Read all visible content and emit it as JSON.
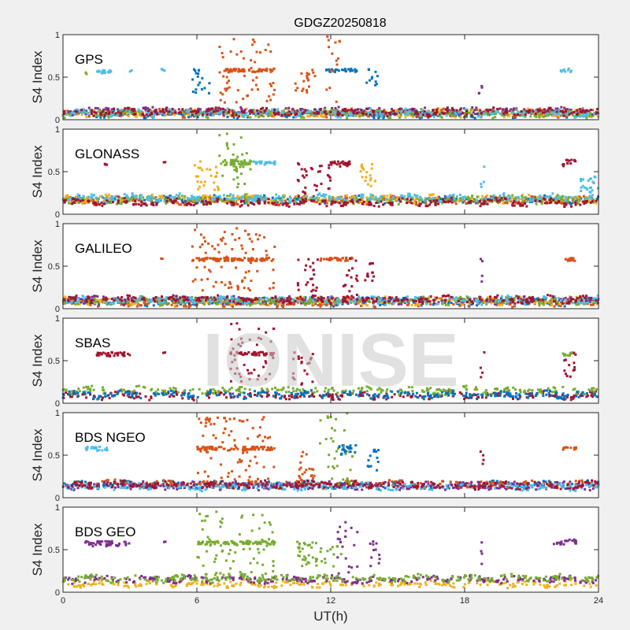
{
  "chart_data": {
    "type": "scatter",
    "title": "GDGZ20250818",
    "xlabel": "UT(h)",
    "xlim": [
      0,
      24
    ],
    "xticks": [
      "0",
      "6",
      "12",
      "18",
      "24"
    ],
    "ylim": [
      0,
      1
    ],
    "yticks": [
      "0",
      "0.5",
      "1"
    ],
    "grid": false,
    "watermark": "IONISE",
    "series_colors": [
      "#0072BD",
      "#D95319",
      "#EDB120",
      "#7E2F8E",
      "#77AC30",
      "#4DBEEE",
      "#A2142F"
    ],
    "panels": [
      {
        "label": "GPS",
        "ylabel": "S4 Index",
        "baseline": [
          {
            "series": 0,
            "s4": 0.07
          },
          {
            "series": 1,
            "s4": 0.08
          },
          {
            "series": 2,
            "s4": 0.08
          },
          {
            "series": 3,
            "s4": 0.1
          },
          {
            "series": 4,
            "s4": 0.07
          },
          {
            "series": 5,
            "s4": 0.08
          },
          {
            "series": 6,
            "s4": 0.09
          }
        ],
        "clusters": [
          {
            "series": 4,
            "t": [
              1.0,
              1.1
            ],
            "s4_range": [
              0.52,
              0.56
            ]
          },
          {
            "series": 5,
            "t": [
              1.5,
              2.2
            ],
            "s4_range": [
              0.54,
              0.58
            ]
          },
          {
            "series": 5,
            "t": [
              3.0,
              3.1
            ],
            "s4_range": [
              0.55,
              0.58
            ]
          },
          {
            "series": 5,
            "t": [
              4.4,
              4.6
            ],
            "s4_range": [
              0.57,
              0.6
            ]
          },
          {
            "series": 0,
            "t": [
              5.8,
              6.6
            ],
            "s4_range": [
              0.3,
              0.6
            ]
          },
          {
            "series": 1,
            "t": [
              7.2,
              9.5
            ],
            "s4_range": [
              0.56,
              0.6
            ]
          },
          {
            "series": 1,
            "t": [
              7.0,
              9.5
            ],
            "s4_range": [
              0.2,
              0.95
            ]
          },
          {
            "series": 1,
            "t": [
              10.4,
              11.3
            ],
            "s4_range": [
              0.3,
              0.6
            ]
          },
          {
            "series": 0,
            "t": [
              11.8,
              13.2
            ],
            "s4_range": [
              0.56,
              0.6
            ]
          },
          {
            "series": 1,
            "t": [
              11.8,
              12.5
            ],
            "s4_range": [
              0.2,
              1.0
            ]
          },
          {
            "series": 0,
            "t": [
              13.6,
              14.1
            ],
            "s4_range": [
              0.4,
              0.6
            ]
          },
          {
            "series": 3,
            "t": [
              18.6,
              18.8
            ],
            "s4_range": [
              0.3,
              0.6
            ]
          },
          {
            "series": 5,
            "t": [
              22.3,
              22.8
            ],
            "s4_range": [
              0.56,
              0.6
            ]
          }
        ]
      },
      {
        "label": "GLONASS",
        "ylabel": "S4 Index",
        "baseline": [
          {
            "series": 0,
            "s4": 0.17
          },
          {
            "series": 1,
            "s4": 0.16
          },
          {
            "series": 2,
            "s4": 0.18
          },
          {
            "series": 4,
            "s4": 0.17
          },
          {
            "series": 5,
            "s4": 0.19
          },
          {
            "series": 6,
            "s4": 0.14
          }
        ],
        "clusters": [
          {
            "series": 6,
            "t": [
              1.8,
              2.0
            ],
            "s4_range": [
              0.58,
              0.62
            ]
          },
          {
            "series": 6,
            "t": [
              4.5,
              4.6
            ],
            "s4_range": [
              0.58,
              0.62
            ]
          },
          {
            "series": 2,
            "t": [
              5.8,
              7.0
            ],
            "s4_range": [
              0.2,
              0.62
            ]
          },
          {
            "series": 4,
            "t": [
              7.0,
              8.5
            ],
            "s4_range": [
              0.58,
              0.64
            ]
          },
          {
            "series": 4,
            "t": [
              7.0,
              8.5
            ],
            "s4_range": [
              0.2,
              0.98
            ]
          },
          {
            "series": 5,
            "t": [
              8.5,
              9.5
            ],
            "s4_range": [
              0.58,
              0.62
            ]
          },
          {
            "series": 6,
            "t": [
              10.5,
              12.0
            ],
            "s4_range": [
              0.2,
              0.64
            ]
          },
          {
            "series": 6,
            "t": [
              12.0,
              13.0
            ],
            "s4_range": [
              0.56,
              0.62
            ]
          },
          {
            "series": 2,
            "t": [
              13.2,
              14.0
            ],
            "s4_range": [
              0.3,
              0.6
            ]
          },
          {
            "series": 5,
            "t": [
              18.7,
              18.9
            ],
            "s4_range": [
              0.3,
              0.62
            ]
          },
          {
            "series": 6,
            "t": [
              22.4,
              23.0
            ],
            "s4_range": [
              0.56,
              0.64
            ]
          },
          {
            "series": 5,
            "t": [
              23.0,
              24.0
            ],
            "s4_range": [
              0.25,
              0.45
            ]
          }
        ]
      },
      {
        "label": "GALILEO",
        "ylabel": "S4 Index",
        "baseline": [
          {
            "series": 0,
            "s4": 0.08
          },
          {
            "series": 1,
            "s4": 0.07
          },
          {
            "series": 2,
            "s4": 0.09
          },
          {
            "series": 3,
            "s4": 0.1
          },
          {
            "series": 4,
            "s4": 0.09
          },
          {
            "series": 5,
            "s4": 0.1
          },
          {
            "series": 6,
            "s4": 0.11
          }
        ],
        "clusters": [
          {
            "series": 1,
            "t": [
              4.4,
              4.5
            ],
            "s4_range": [
              0.56,
              0.6
            ]
          },
          {
            "series": 1,
            "t": [
              5.8,
              9.5
            ],
            "s4_range": [
              0.56,
              0.6
            ]
          },
          {
            "series": 1,
            "t": [
              5.8,
              9.5
            ],
            "s4_range": [
              0.2,
              0.95
            ]
          },
          {
            "series": 6,
            "t": [
              10.5,
              11.5
            ],
            "s4_range": [
              0.2,
              0.6
            ]
          },
          {
            "series": 1,
            "t": [
              11.5,
              13.0
            ],
            "s4_range": [
              0.56,
              0.6
            ]
          },
          {
            "series": 6,
            "t": [
              12.5,
              13.2
            ],
            "s4_range": [
              0.2,
              0.6
            ]
          },
          {
            "series": 6,
            "t": [
              13.5,
              14.0
            ],
            "s4_range": [
              0.3,
              0.55
            ]
          },
          {
            "series": 3,
            "t": [
              18.7,
              18.9
            ],
            "s4_range": [
              0.3,
              0.6
            ]
          },
          {
            "series": 1,
            "t": [
              22.4,
              23.0
            ],
            "s4_range": [
              0.56,
              0.6
            ]
          }
        ]
      },
      {
        "label": "SBAS",
        "ylabel": "S4 Index",
        "baseline": [
          {
            "series": 6,
            "s4": 0.09
          },
          {
            "series": 4,
            "s4": 0.15
          },
          {
            "series": 0,
            "s4": 0.1
          }
        ],
        "clusters": [
          {
            "series": 6,
            "t": [
              1.5,
              3.0
            ],
            "s4_range": [
              0.55,
              0.6
            ]
          },
          {
            "series": 6,
            "t": [
              4.5,
              4.6
            ],
            "s4_range": [
              0.56,
              0.6
            ]
          },
          {
            "series": 6,
            "t": [
              7.5,
              9.5
            ],
            "s4_range": [
              0.56,
              0.6
            ]
          },
          {
            "series": 6,
            "t": [
              7.5,
              9.5
            ],
            "s4_range": [
              0.2,
              0.95
            ]
          },
          {
            "series": 6,
            "t": [
              10.3,
              11.2
            ],
            "s4_range": [
              0.2,
              0.6
            ]
          },
          {
            "series": 6,
            "t": [
              18.7,
              18.9
            ],
            "s4_range": [
              0.3,
              0.6
            ]
          },
          {
            "series": 4,
            "t": [
              22.4,
              23.0
            ],
            "s4_range": [
              0.56,
              0.6
            ]
          },
          {
            "series": 6,
            "t": [
              22.4,
              23.0
            ],
            "s4_range": [
              0.3,
              0.6
            ]
          }
        ]
      },
      {
        "label": "BDS NGEO",
        "ylabel": "S4 Index",
        "baseline": [
          {
            "series": 0,
            "s4": 0.15
          },
          {
            "series": 1,
            "s4": 0.16
          },
          {
            "series": 3,
            "s4": 0.14
          },
          {
            "series": 5,
            "s4": 0.13
          },
          {
            "series": 6,
            "s4": 0.15
          }
        ],
        "clusters": [
          {
            "series": 5,
            "t": [
              1.0,
              2.0
            ],
            "s4_range": [
              0.55,
              0.6
            ]
          },
          {
            "series": 1,
            "t": [
              6.0,
              9.5
            ],
            "s4_range": [
              0.56,
              0.6
            ]
          },
          {
            "series": 1,
            "t": [
              6.0,
              9.5
            ],
            "s4_range": [
              0.2,
              0.95
            ]
          },
          {
            "series": 1,
            "t": [
              10.5,
              11.3
            ],
            "s4_range": [
              0.2,
              0.6
            ]
          },
          {
            "series": 4,
            "t": [
              11.5,
              13.0
            ],
            "s4_range": [
              0.15,
              1.0
            ]
          },
          {
            "series": 0,
            "t": [
              12.3,
              13.2
            ],
            "s4_range": [
              0.5,
              0.62
            ]
          },
          {
            "series": 0,
            "t": [
              13.6,
              14.2
            ],
            "s4_range": [
              0.3,
              0.6
            ]
          },
          {
            "series": 6,
            "t": [
              18.7,
              18.9
            ],
            "s4_range": [
              0.3,
              0.6
            ]
          },
          {
            "series": 1,
            "t": [
              22.4,
              23.0
            ],
            "s4_range": [
              0.56,
              0.6
            ]
          }
        ]
      },
      {
        "label": "BDS GEO",
        "ylabel": "S4 Index",
        "baseline": [
          {
            "series": 2,
            "s4": 0.1
          },
          {
            "series": 3,
            "s4": 0.15
          },
          {
            "series": 4,
            "s4": 0.16
          }
        ],
        "clusters": [
          {
            "series": 3,
            "t": [
              1.0,
              3.0
            ],
            "s4_range": [
              0.54,
              0.6
            ]
          },
          {
            "series": 3,
            "t": [
              4.5,
              4.6
            ],
            "s4_range": [
              0.58,
              0.6
            ]
          },
          {
            "series": 4,
            "t": [
              6.0,
              9.5
            ],
            "s4_range": [
              0.56,
              0.6
            ]
          },
          {
            "series": 4,
            "t": [
              6.0,
              9.5
            ],
            "s4_range": [
              0.2,
              0.95
            ]
          },
          {
            "series": 4,
            "t": [
              10.5,
              12.5
            ],
            "s4_range": [
              0.3,
              0.6
            ]
          },
          {
            "series": 3,
            "t": [
              12.3,
              13.2
            ],
            "s4_range": [
              0.2,
              0.9
            ]
          },
          {
            "series": 3,
            "t": [
              13.7,
              14.2
            ],
            "s4_range": [
              0.3,
              0.6
            ]
          },
          {
            "series": 3,
            "t": [
              18.7,
              18.9
            ],
            "s4_range": [
              0.3,
              0.6
            ]
          },
          {
            "series": 3,
            "t": [
              22.0,
              23.0
            ],
            "s4_range": [
              0.56,
              0.62
            ]
          }
        ]
      }
    ]
  }
}
